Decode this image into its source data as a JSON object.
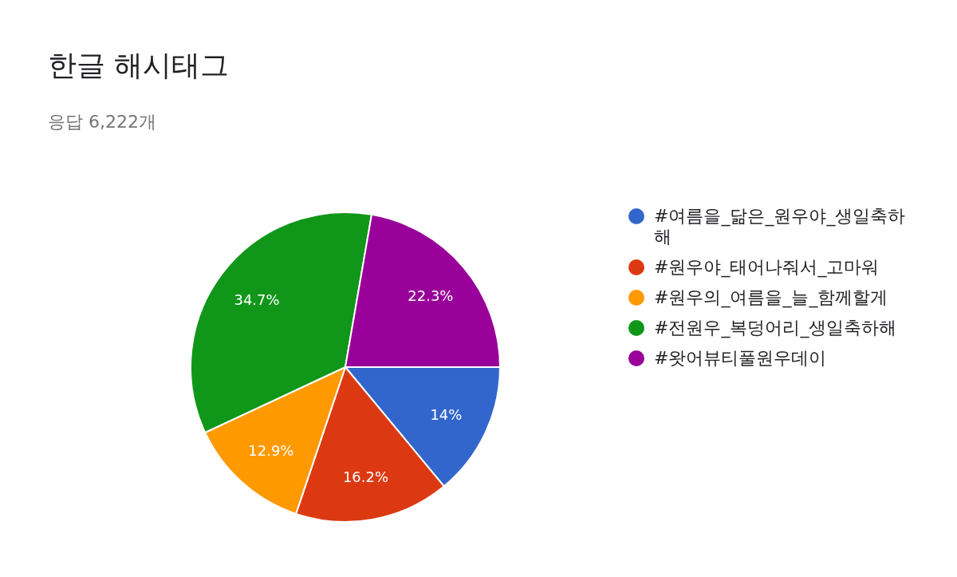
{
  "chart_data": {
    "type": "pie",
    "title": "한글 해시태그",
    "subtitle": "응답 6,222개",
    "categories": [
      "#여름을_닮은_원우야_생일축하해",
      "#원우야_태어나줘서_고마워",
      "#원우의_여름을_늘_함께할게",
      "#전원우_복덩어리_생일축하해",
      "#왓어뷰티풀원우데이"
    ],
    "values": [
      14,
      16.2,
      12.9,
      34.7,
      22.3
    ],
    "colors": [
      "#3366cc",
      "#dc3912",
      "#ff9900",
      "#109618",
      "#990099"
    ],
    "value_labels": [
      "14%",
      "16.2%",
      "12.9%",
      "34.7%",
      "22.3%"
    ],
    "legend": "right"
  }
}
